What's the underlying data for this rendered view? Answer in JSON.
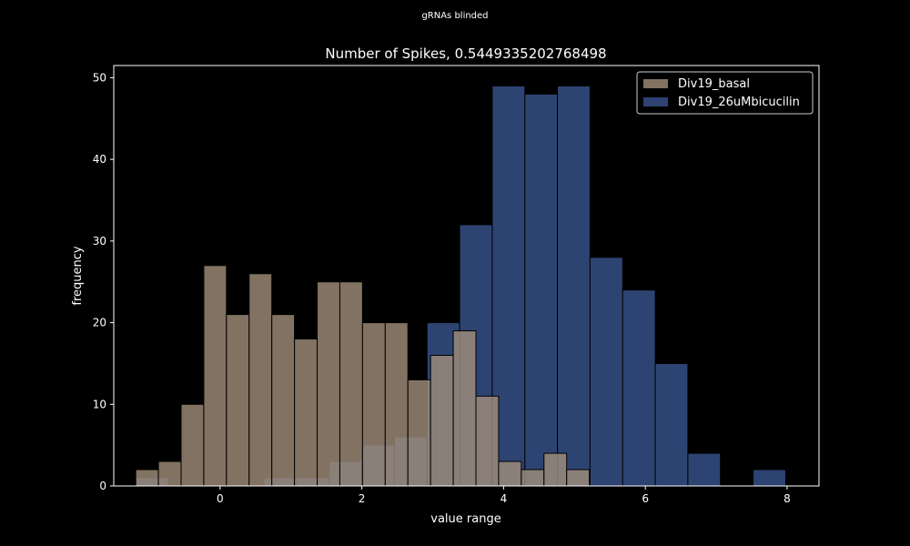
{
  "suptitle": "gRNAs blinded",
  "chart_data": {
    "type": "histogram",
    "title": "Number of Spikes, 0.5449335202768498",
    "xlabel": "value range",
    "ylabel": "frequency",
    "xlim": [
      -1.5,
      8.45
    ],
    "ylim": [
      0,
      51.5
    ],
    "xticks": [
      0,
      2,
      4,
      6,
      8
    ],
    "yticks": [
      0,
      10,
      20,
      30,
      40,
      50
    ],
    "legend_position": "top-right",
    "series": [
      {
        "name": "Div19_26uMbicucilin",
        "color": "#385590",
        "alpha": 0.8,
        "bins": [
          [
            -1.19,
            -0.73,
            1
          ],
          [
            0.62,
            1.08,
            1
          ],
          [
            1.08,
            1.54,
            1
          ],
          [
            1.54,
            2.0,
            3
          ],
          [
            2.0,
            2.46,
            5
          ],
          [
            2.46,
            2.92,
            6
          ],
          [
            2.92,
            3.38,
            20
          ],
          [
            3.38,
            3.84,
            32
          ],
          [
            3.84,
            4.3,
            49
          ],
          [
            4.3,
            4.76,
            48
          ],
          [
            4.76,
            5.22,
            49
          ],
          [
            5.22,
            5.68,
            28
          ],
          [
            5.68,
            6.14,
            24
          ],
          [
            6.14,
            6.6,
            15
          ],
          [
            6.6,
            7.06,
            4
          ],
          [
            7.52,
            7.98,
            2
          ]
        ]
      },
      {
        "name": "Div19_basal",
        "color": "#a18f7a",
        "alpha": 0.8,
        "bins": [
          [
            -1.19,
            -0.87,
            2
          ],
          [
            -0.87,
            -0.55,
            3
          ],
          [
            -0.55,
            -0.23,
            10
          ],
          [
            -0.23,
            0.09,
            27
          ],
          [
            0.09,
            0.41,
            21
          ],
          [
            0.41,
            0.73,
            26
          ],
          [
            0.73,
            1.05,
            21
          ],
          [
            1.05,
            1.37,
            18
          ],
          [
            1.37,
            1.69,
            25
          ],
          [
            1.69,
            2.01,
            25
          ],
          [
            2.01,
            2.33,
            20
          ],
          [
            2.33,
            2.65,
            20
          ],
          [
            2.65,
            2.97,
            13
          ],
          [
            2.97,
            3.29,
            16
          ],
          [
            3.29,
            3.61,
            19
          ],
          [
            3.61,
            3.93,
            11
          ],
          [
            3.93,
            4.25,
            3
          ],
          [
            4.25,
            4.57,
            2
          ],
          [
            4.57,
            4.89,
            4
          ],
          [
            4.89,
            5.21,
            2
          ]
        ]
      }
    ]
  }
}
